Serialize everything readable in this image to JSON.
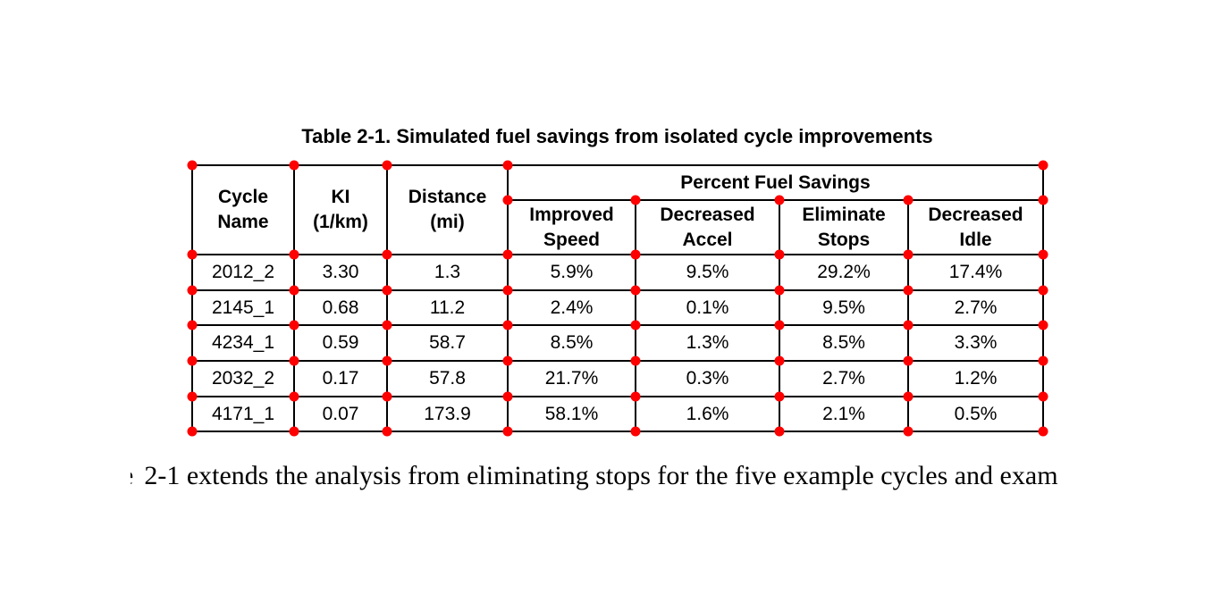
{
  "annotation": {
    "corner_marker_color": "#ff0000"
  },
  "table": {
    "title": "Table 2-1. Simulated fuel savings from isolated cycle improvements",
    "header": {
      "cycle_name": [
        "Cycle",
        "Name"
      ],
      "ki": [
        "KI",
        "(1/km)"
      ],
      "distance": [
        "Distance",
        "(mi)"
      ],
      "group": "Percent Fuel Savings",
      "improved_speed": [
        "Improved",
        "Speed"
      ],
      "decreased_accel": [
        "Decreased",
        "Accel"
      ],
      "eliminate_stops": [
        "Eliminate",
        "Stops"
      ],
      "decreased_idle": [
        "Decreased",
        "Idle"
      ]
    },
    "rows": [
      {
        "cycle_name": "2012_2",
        "ki": "3.30",
        "distance": "1.3",
        "improved_speed": "5.9%",
        "decreased_accel": "9.5%",
        "eliminate_stops": "29.2%",
        "decreased_idle": "17.4%"
      },
      {
        "cycle_name": "2145_1",
        "ki": "0.68",
        "distance": "11.2",
        "improved_speed": "2.4%",
        "decreased_accel": "0.1%",
        "eliminate_stops": "9.5%",
        "decreased_idle": "2.7%"
      },
      {
        "cycle_name": "4234_1",
        "ki": "0.59",
        "distance": "58.7",
        "improved_speed": "8.5%",
        "decreased_accel": "1.3%",
        "eliminate_stops": "8.5%",
        "decreased_idle": "3.3%"
      },
      {
        "cycle_name": "2032_2",
        "ki": "0.17",
        "distance": "57.8",
        "improved_speed": "21.7%",
        "decreased_accel": "0.3%",
        "eliminate_stops": "2.7%",
        "decreased_idle": "1.2%"
      },
      {
        "cycle_name": "4171_1",
        "ki": "0.07",
        "distance": "173.9",
        "improved_speed": "58.1%",
        "decreased_accel": "1.6%",
        "eliminate_stops": "2.1%",
        "decreased_idle": "0.5%"
      }
    ]
  },
  "paragraph": {
    "clipped_prefix": "e",
    "text": "2-1 extends the analysis from eliminating stops for the five example cycles and exam"
  },
  "chart_data": {
    "type": "table",
    "title": "Table 2-1. Simulated fuel savings from isolated cycle improvements",
    "columns": [
      "Cycle Name",
      "KI (1/km)",
      "Distance (mi)",
      "Improved Speed",
      "Decreased Accel",
      "Eliminate Stops",
      "Decreased Idle"
    ],
    "column_group": {
      "label": "Percent Fuel Savings",
      "spans": [
        "Improved Speed",
        "Decreased Accel",
        "Eliminate Stops",
        "Decreased Idle"
      ]
    },
    "rows": [
      [
        "2012_2",
        3.3,
        1.3,
        "5.9%",
        "9.5%",
        "29.2%",
        "17.4%"
      ],
      [
        "2145_1",
        0.68,
        11.2,
        "2.4%",
        "0.1%",
        "9.5%",
        "2.7%"
      ],
      [
        "4234_1",
        0.59,
        58.7,
        "8.5%",
        "1.3%",
        "8.5%",
        "3.3%"
      ],
      [
        "2032_2",
        0.17,
        57.8,
        "21.7%",
        "0.3%",
        "2.7%",
        "1.2%"
      ],
      [
        "4171_1",
        0.07,
        173.9,
        "58.1%",
        "1.6%",
        "2.1%",
        "0.5%"
      ]
    ]
  }
}
